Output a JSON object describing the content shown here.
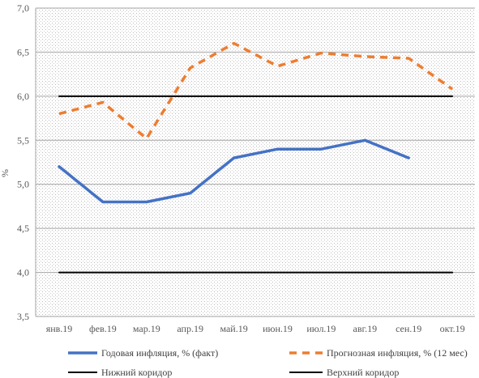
{
  "chart_data": {
    "type": "line",
    "title": "",
    "xlabel": "",
    "ylabel": "%",
    "ylim": [
      3.5,
      7.0
    ],
    "yticks": [
      3.5,
      4.0,
      4.5,
      5.0,
      5.5,
      6.0,
      6.5,
      7.0
    ],
    "ytick_labels": [
      "3,5",
      "4,0",
      "4,5",
      "5,0",
      "5,5",
      "6,0",
      "6,5",
      "7,0"
    ],
    "categories": [
      "янв.19",
      "фев.19",
      "мар.19",
      "апр.19",
      "май.19",
      "июн.19",
      "июл.19",
      "авг.19",
      "сен.19",
      "окт.19"
    ],
    "grid": true,
    "legend_position": "bottom",
    "series": [
      {
        "name": "Годовая инфляция, % (факт)",
        "color": "#4472C4",
        "style": "solid",
        "values": [
          5.2,
          4.8,
          4.8,
          4.9,
          5.3,
          5.4,
          5.4,
          5.5,
          5.3,
          null
        ]
      },
      {
        "name": "Прогнозная инфляция, % (12 мес)",
        "color": "#ED7D31",
        "style": "dashed",
        "values": [
          5.8,
          5.93,
          5.52,
          6.32,
          6.6,
          6.34,
          6.49,
          6.45,
          6.43,
          6.08
        ]
      },
      {
        "name": "Нижний коридор",
        "color": "#000000",
        "style": "solid",
        "values": [
          4.0,
          4.0,
          4.0,
          4.0,
          4.0,
          4.0,
          4.0,
          4.0,
          4.0,
          4.0
        ]
      },
      {
        "name": "Верхний коридор",
        "color": "#000000",
        "style": "solid",
        "values": [
          6.0,
          6.0,
          6.0,
          6.0,
          6.0,
          6.0,
          6.0,
          6.0,
          6.0,
          6.0
        ]
      }
    ]
  }
}
